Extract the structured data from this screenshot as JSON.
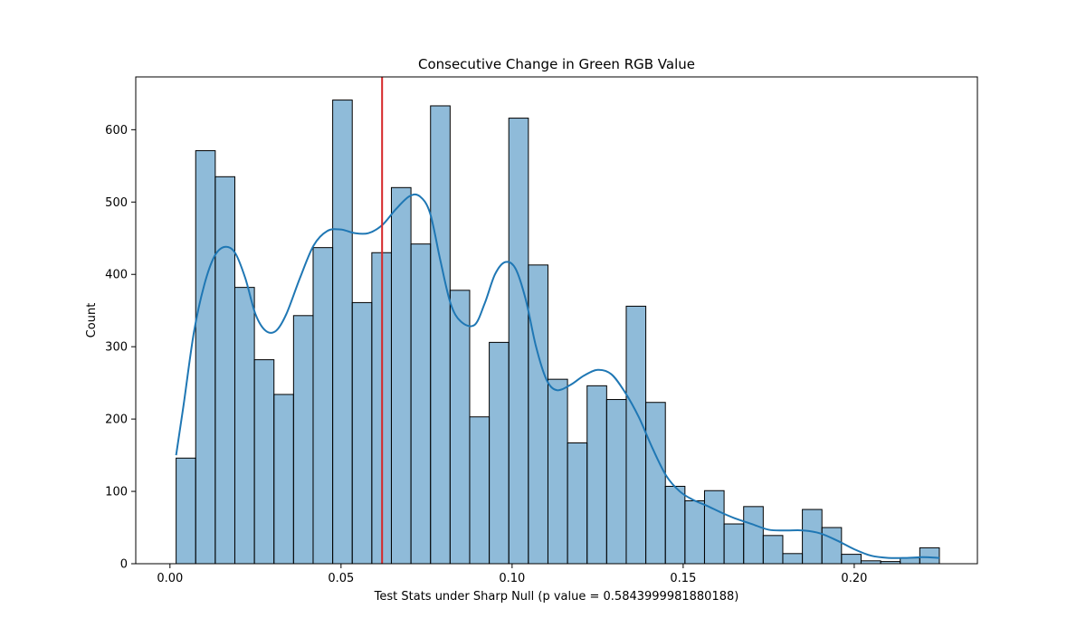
{
  "chart_data": {
    "type": "bar",
    "title": "Consecutive Change in Green RGB Value",
    "xlabel": "Test Stats under Sharp Null (p value = 0.5843999981880188)",
    "ylabel": "Count",
    "xlim": [
      -0.01,
      0.236
    ],
    "ylim": [
      0,
      673
    ],
    "xticks": [
      0.0,
      0.05,
      0.1,
      0.15,
      0.2
    ],
    "xtick_labels": [
      "0.00",
      "0.05",
      "0.10",
      "0.15",
      "0.20"
    ],
    "yticks": [
      0,
      100,
      200,
      300,
      400,
      500,
      600
    ],
    "ytick_labels": [
      "0",
      "100",
      "200",
      "300",
      "400",
      "500",
      "600"
    ],
    "grid": false,
    "bin_start": 0.0018,
    "bin_width": 0.00572,
    "counts": [
      146,
      571,
      535,
      382,
      282,
      234,
      343,
      437,
      641,
      361,
      430,
      520,
      442,
      633,
      378,
      203,
      306,
      616,
      413,
      255,
      167,
      246,
      227,
      356,
      223,
      107,
      87,
      101,
      55,
      79,
      39,
      14,
      75,
      50,
      13,
      4,
      3,
      8,
      22
    ],
    "kde": {
      "x": [
        0.0018,
        0.004,
        0.007,
        0.01,
        0.013,
        0.016,
        0.019,
        0.022,
        0.025,
        0.028,
        0.031,
        0.034,
        0.038,
        0.042,
        0.046,
        0.05,
        0.054,
        0.058,
        0.062,
        0.066,
        0.07,
        0.073,
        0.076,
        0.079,
        0.082,
        0.085,
        0.089,
        0.092,
        0.095,
        0.098,
        0.101,
        0.104,
        0.107,
        0.11,
        0.113,
        0.117,
        0.121,
        0.125,
        0.129,
        0.133,
        0.137,
        0.141,
        0.145,
        0.149,
        0.153,
        0.157,
        0.161,
        0.165,
        0.17,
        0.175,
        0.18,
        0.185,
        0.19,
        0.195,
        0.2,
        0.205,
        0.21,
        0.215,
        0.22,
        0.2249
      ],
      "y": [
        150,
        220,
        320,
        385,
        425,
        438,
        430,
        395,
        345,
        322,
        322,
        345,
        395,
        440,
        460,
        462,
        457,
        457,
        468,
        490,
        508,
        508,
        485,
        420,
        360,
        335,
        330,
        360,
        400,
        417,
        408,
        365,
        300,
        255,
        240,
        247,
        260,
        268,
        262,
        237,
        203,
        160,
        122,
        100,
        88,
        80,
        71,
        63,
        55,
        47,
        46,
        46,
        42,
        32,
        20,
        11,
        8,
        8,
        9,
        8
      ]
    },
    "vline": 0.062,
    "colors": {
      "bar_fill": "#1f77b4",
      "bar_edge": "#000000",
      "kde_line": "#1f77b4",
      "vline": "#d62728"
    }
  }
}
